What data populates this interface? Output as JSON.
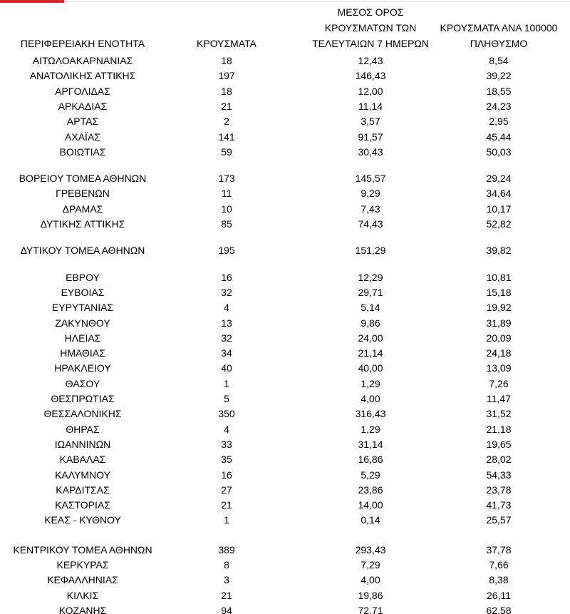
{
  "table": {
    "header": [
      "ΠΕΡΙΦΕΡΕΙΑΚΗ ΕΝΟΤΗΤΑ",
      "ΚΡΟΥΣΜΑΤΑ",
      "ΜΕΣΟΣ ΟΡΟΣ ΚΡΟΥΣΜΑΤΩΝ ΤΩΝ ΤΕΛΕΥΤΑΙΩΝ 7 ΗΜΕΡΩΝ",
      "ΚΡΟΥΣΜΑΤΑ ΑΝΑ 100000 ΠΛΗΘΥΣΜΟ"
    ],
    "rows": [
      [
        "ΑΙΤΩΛΟΑΚΑΡΝΑΝΙΑΣ",
        "18",
        "12,43",
        "8,54"
      ],
      [
        "ΑΝΑΤΟΛΙΚΗΣ ΑΤΤΙΚΗΣ",
        "197",
        "146,43",
        "39,22"
      ],
      [
        "ΑΡΓΟΛΙΔΑΣ",
        "18",
        "12,00",
        "18,55"
      ],
      [
        "ΑΡΚΑΔΙΑΣ",
        "21",
        "11,14",
        "24,23"
      ],
      [
        "ΑΡΤΑΣ",
        "2",
        "3,57",
        "2,95"
      ],
      [
        "ΑΧΑΪΑΣ",
        "141",
        "91,57",
        "45,44"
      ],
      [
        "ΒΟΙΩΤΙΑΣ",
        "59",
        "30,43",
        "50,03"
      ],
      [
        "ΒΟΡΕΙΟΥ ΤΟΜΕΑ ΑΘΗΝΩΝ",
        "173",
        "145,57",
        "29,24"
      ],
      [
        "ΓΡΕΒΕΝΩΝ",
        "11",
        "9,29",
        "34,64"
      ],
      [
        "ΔΡΑΜΑΣ",
        "10",
        "7,43",
        "10,17"
      ],
      [
        "ΔΥΤΙΚΗΣ ΑΤΤΙΚΗΣ",
        "85",
        "74,43",
        "52,82"
      ],
      [
        "ΔΥΤΙΚΟΥ ΤΟΜΕΑ ΑΘΗΝΩΝ",
        "195",
        "151,29",
        "39,82"
      ],
      [
        "ΕΒΡΟΥ",
        "16",
        "12,29",
        "10,81"
      ],
      [
        "ΕΥΒΟΙΑΣ",
        "32",
        "29,71",
        "15,18"
      ],
      [
        "ΕΥΡΥΤΑΝΙΑΣ",
        "4",
        "5,14",
        "19,92"
      ],
      [
        "ΖΑΚΥΝΘΟΥ",
        "13",
        "9,86",
        "31,89"
      ],
      [
        "ΗΛΕΙΑΣ",
        "32",
        "24,00",
        "20,09"
      ],
      [
        "ΗΜΑΘΙΑΣ",
        "34",
        "21,14",
        "24,18"
      ],
      [
        "ΗΡΑΚΛΕΙΟΥ",
        "40",
        "40,00",
        "13,09"
      ],
      [
        "ΘΑΣΟΥ",
        "1",
        "1,29",
        "7,26"
      ],
      [
        "ΘΕΣΠΡΩΤΙΑΣ",
        "5",
        "4,00",
        "11,47"
      ],
      [
        "ΘΕΣΣΑΛΟΝΙΚΗΣ",
        "350",
        "316,43",
        "31,52"
      ],
      [
        "ΘΗΡΑΣ",
        "4",
        "1,29",
        "21,18"
      ],
      [
        "ΙΩΑΝΝΙΝΩΝ",
        "33",
        "31,14",
        "19,65"
      ],
      [
        "ΚΑΒΑΛΑΣ",
        "35",
        "16,86",
        "28,02"
      ],
      [
        "ΚΑΛΥΜΝΟΥ",
        "16",
        "5,29",
        "54,33"
      ],
      [
        "ΚΑΡΔΙΤΣΑΣ",
        "27",
        "23,86",
        "23,78"
      ],
      [
        "ΚΑΣΤΟΡΙΑΣ",
        "21",
        "14,00",
        "41,73"
      ],
      [
        "ΚΕΑΣ - ΚΥΘΝΟΥ",
        "1",
        "0,14",
        "25,57"
      ],
      [
        "ΚΕΝΤΡΙΚΟΥ ΤΟΜΕΑ ΑΘΗΝΩΝ",
        "389",
        "293,43",
        "37,78"
      ],
      [
        "ΚΕΡΚΥΡΑΣ",
        "8",
        "7,29",
        "7,66"
      ],
      [
        "ΚΕΦΑΛΛΗΝΙΑΣ",
        "3",
        "4,00",
        "8,38"
      ],
      [
        "ΚΙΛΚΙΣ",
        "21",
        "19,86",
        "26,11"
      ],
      [
        "ΚΟΖΑΝΗΣ",
        "94",
        "72,71",
        "62,58"
      ]
    ]
  }
}
